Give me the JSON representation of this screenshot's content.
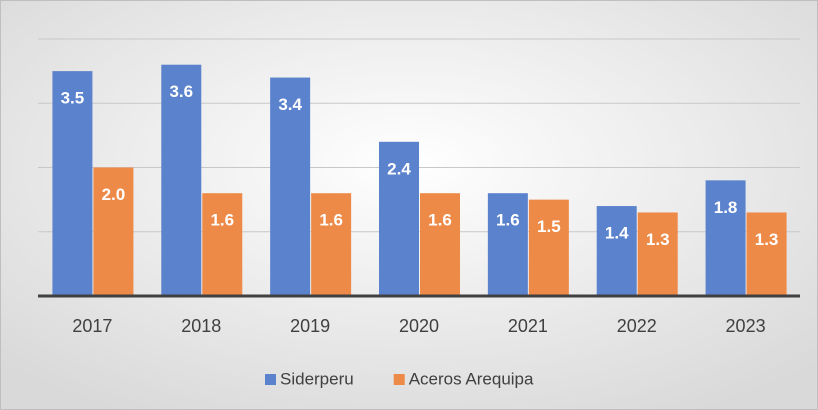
{
  "chart_data": {
    "type": "bar",
    "categories": [
      "2017",
      "2018",
      "2019",
      "2020",
      "2021",
      "2022",
      "2023"
    ],
    "series": [
      {
        "name": "Siderperu",
        "color": "#5b82cc",
        "values": [
          3.5,
          3.6,
          3.4,
          2.4,
          1.6,
          1.4,
          1.8
        ],
        "value_labels": [
          "3.5",
          "3.6",
          "3.4",
          "2.4",
          "1.6",
          "1.4",
          "1.8"
        ]
      },
      {
        "name": "Aceros Arequipa",
        "color": "#ee8a47",
        "values": [
          2.0,
          1.6,
          1.6,
          1.6,
          1.5,
          1.3,
          1.3
        ],
        "value_labels": [
          "2.0",
          "1.6",
          "1.6",
          "1.6",
          "1.5",
          "1.3",
          "1.3"
        ]
      }
    ],
    "ylim": [
      0,
      4
    ],
    "yticks": [
      0,
      1,
      2,
      3,
      4
    ],
    "grid": true,
    "legend": "bottom"
  }
}
